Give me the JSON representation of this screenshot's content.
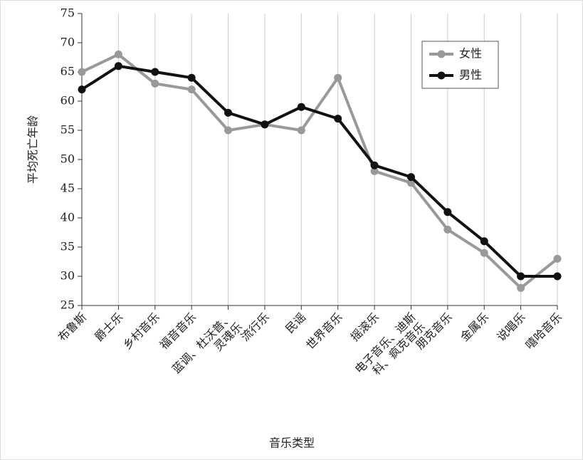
{
  "chart_data": {
    "type": "line",
    "y_label": "平均死亡年龄",
    "x_label": "音乐类型",
    "categories": [
      "布鲁斯",
      "爵士乐",
      "乡村音乐",
      "福音音乐",
      [
        "蓝调、杜沃普、",
        "灵魂乐"
      ],
      "流行乐",
      "民谣",
      "世界音乐",
      "摇滚乐",
      [
        "电子音乐、迪斯",
        "科、疯克音乐"
      ],
      "朋克音乐",
      "金属乐",
      "说唱乐",
      "嘻哈音乐"
    ],
    "series": [
      {
        "name": "女性",
        "color": "#999999",
        "values": [
          65,
          68,
          63,
          62,
          55,
          56,
          55,
          64,
          48,
          46,
          38,
          34,
          28,
          33
        ]
      },
      {
        "name": "男性",
        "color": "#111111",
        "values": [
          62,
          66,
          65,
          64,
          58,
          56,
          59,
          57,
          49,
          47,
          41,
          36,
          30,
          30
        ]
      }
    ],
    "ylim": [
      25,
      75
    ],
    "yticks": [
      25,
      30,
      35,
      40,
      45,
      50,
      55,
      60,
      65,
      70,
      75
    ],
    "grid": true,
    "legend": "upper right"
  }
}
